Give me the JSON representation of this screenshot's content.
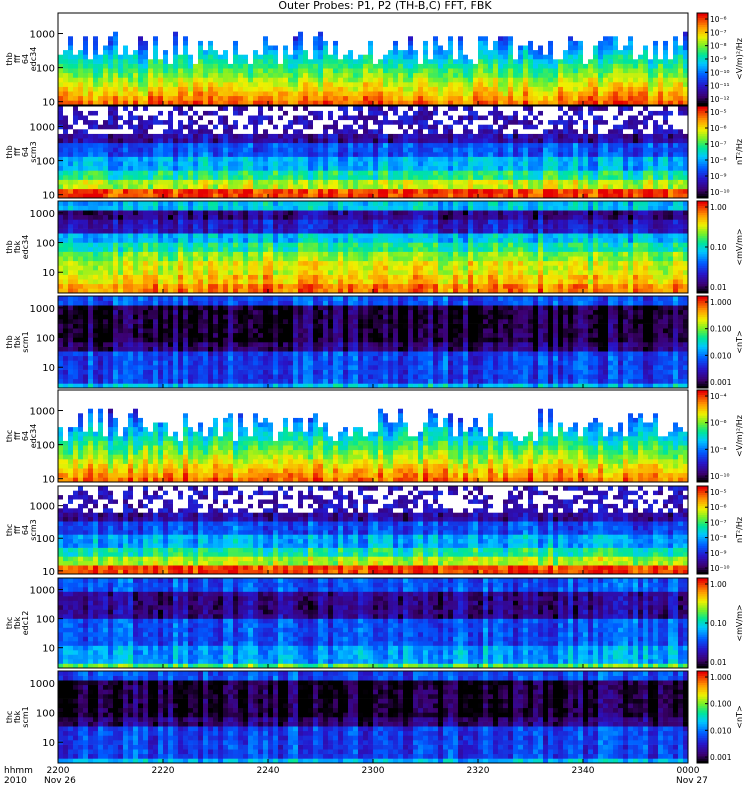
{
  "chart_data": {
    "type": "heatmap",
    "title": "Outer Probes: P1, P2 (TH-B,C) FFT, FBK",
    "x_ticks": [
      "2200",
      "2220",
      "2240",
      "2300",
      "2320",
      "2340",
      "0000"
    ],
    "x_range": [
      "2200",
      "0000"
    ],
    "x_row_labels": [
      "hhmm",
      "2010"
    ],
    "date_labels": [
      "Nov 26",
      "Nov 27"
    ],
    "y_scale": "log",
    "panels": [
      {
        "ylabel_lines": [
          "thb",
          "fff",
          "64",
          "edc34"
        ],
        "y_ticks": [
          10,
          100,
          1000
        ],
        "ylim": [
          8,
          4000
        ],
        "colorbar_label": "<V/m)²/Hz",
        "colorbar_ticks": [
          "10⁻⁶",
          "10⁻⁷",
          "10⁻⁸",
          "10⁻⁹",
          "10⁻¹⁰",
          "10⁻¹¹",
          "10⁻¹²"
        ],
        "pattern": "fft_e"
      },
      {
        "ylabel_lines": [
          "thb",
          "fff",
          "64",
          "scm3"
        ],
        "y_ticks": [
          10,
          100,
          1000
        ],
        "ylim": [
          8,
          4000
        ],
        "colorbar_label": "nT²/Hz",
        "colorbar_ticks": [
          "10⁻⁵",
          "10⁻⁶",
          "10⁻⁷",
          "10⁻⁸",
          "10⁻⁹",
          "10⁻¹⁰"
        ],
        "pattern": "fft_b"
      },
      {
        "ylabel_lines": [
          "thb",
          "fbk",
          "edc34"
        ],
        "y_ticks": [
          10,
          100,
          1000
        ],
        "ylim": [
          2,
          2500
        ],
        "colorbar_label": "<mV/m>",
        "colorbar_ticks": [
          "1.00",
          "0.10",
          "0.01"
        ],
        "pattern": "fbk_e_b"
      },
      {
        "ylabel_lines": [
          "thb",
          "fbk",
          "scm1"
        ],
        "y_ticks": [
          10,
          100,
          1000
        ],
        "ylim": [
          2,
          2500
        ],
        "colorbar_label": "<nT>",
        "colorbar_ticks": [
          "1.000",
          "0.100",
          "0.010",
          "0.001"
        ],
        "pattern": "fbk_b"
      },
      {
        "ylabel_lines": [
          "thc",
          "fff",
          "64",
          "edc34"
        ],
        "y_ticks": [
          10,
          100,
          1000
        ],
        "ylim": [
          8,
          4000
        ],
        "colorbar_label": "<V/m)²/Hz",
        "colorbar_ticks": [
          "10⁻⁴",
          "10⁻⁶",
          "10⁻⁸",
          "10⁻¹⁰"
        ],
        "pattern": "fft_e"
      },
      {
        "ylabel_lines": [
          "thc",
          "fff",
          "64",
          "scm3"
        ],
        "y_ticks": [
          10,
          100,
          1000
        ],
        "ylim": [
          8,
          4000
        ],
        "colorbar_label": "nT²/Hz",
        "colorbar_ticks": [
          "10⁻⁵",
          "10⁻⁶",
          "10⁻⁷",
          "10⁻⁸",
          "10⁻⁹",
          "10⁻¹⁰"
        ],
        "pattern": "fft_b"
      },
      {
        "ylabel_lines": [
          "thc",
          "fbk",
          "edc12"
        ],
        "y_ticks": [
          10,
          100,
          1000
        ],
        "ylim": [
          2,
          2500
        ],
        "colorbar_label": "<mV/m>",
        "colorbar_ticks": [
          "1.00",
          "0.10",
          "0.01"
        ],
        "pattern": "fbk_e_c"
      },
      {
        "ylabel_lines": [
          "thc",
          "fbk",
          "scm1"
        ],
        "y_ticks": [
          10,
          100,
          1000
        ],
        "ylim": [
          2,
          2500
        ],
        "colorbar_label": "<nT>",
        "colorbar_ticks": [
          "1.000",
          "0.100",
          "0.010",
          "0.001"
        ],
        "pattern": "fbk_b"
      }
    ]
  }
}
